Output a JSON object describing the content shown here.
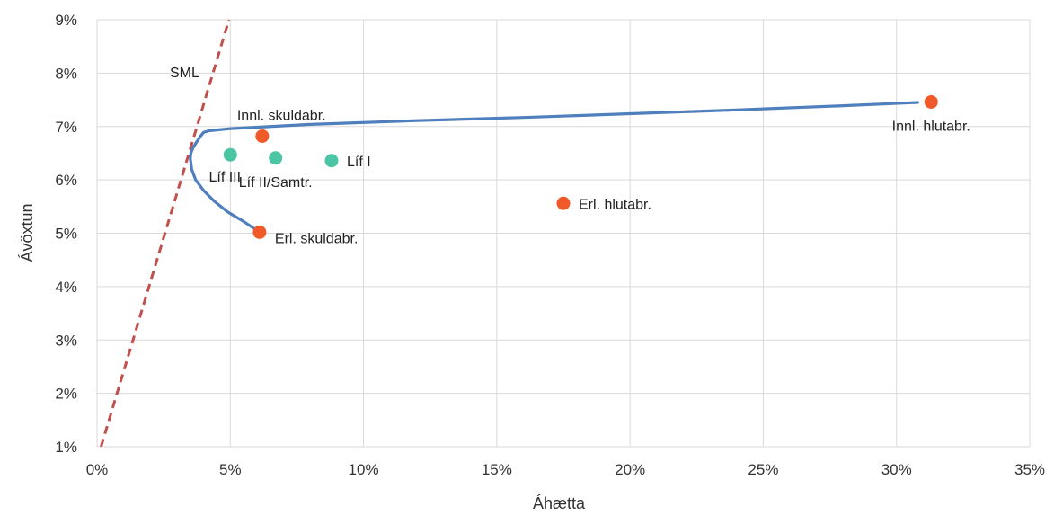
{
  "chart_data": {
    "type": "scatter",
    "title": "",
    "xlabel": "Áhætta",
    "ylabel": "Ávöxtun",
    "xlim": [
      0,
      0.35
    ],
    "ylim": [
      0.01,
      0.09
    ],
    "grid": true,
    "x_ticks": [
      {
        "value": 0,
        "label": "0%"
      },
      {
        "value": 0.05,
        "label": "5%"
      },
      {
        "value": 0.1,
        "label": "10%"
      },
      {
        "value": 0.15,
        "label": "15%"
      },
      {
        "value": 0.2,
        "label": "20%"
      },
      {
        "value": 0.25,
        "label": "25%"
      },
      {
        "value": 0.3,
        "label": "30%"
      },
      {
        "value": 0.35,
        "label": "35%"
      }
    ],
    "y_ticks": [
      {
        "value": 0.01,
        "label": "1%"
      },
      {
        "value": 0.02,
        "label": "2%"
      },
      {
        "value": 0.03,
        "label": "3%"
      },
      {
        "value": 0.04,
        "label": "4%"
      },
      {
        "value": 0.05,
        "label": "5%"
      },
      {
        "value": 0.06,
        "label": "6%"
      },
      {
        "value": 0.07,
        "label": "7%"
      },
      {
        "value": 0.08,
        "label": "8%"
      },
      {
        "value": 0.09,
        "label": "9%"
      }
    ],
    "colors": {
      "asset": "#f05a28",
      "fund": "#4cc5a5",
      "frontier": "#4f7fbd",
      "sml": "#c0504d",
      "grid": "#d9d9d9"
    },
    "points": [
      {
        "label": "Innl. skuldabr.",
        "x": 0.062,
        "y": 0.0682,
        "group": "asset",
        "label_pos": "above-left"
      },
      {
        "label": "Erl. skuldabr.",
        "x": 0.061,
        "y": 0.0502,
        "group": "asset",
        "label_pos": "right-below"
      },
      {
        "label": "Erl. hlutabr.",
        "x": 0.175,
        "y": 0.0556,
        "group": "asset",
        "label_pos": "right"
      },
      {
        "label": "Innl. hlutabr.",
        "x": 0.313,
        "y": 0.0746,
        "group": "asset",
        "label_pos": "below"
      },
      {
        "label": "Líf III",
        "x": 0.05,
        "y": 0.0647,
        "group": "fund",
        "label_pos": "below-left"
      },
      {
        "label": "Líf II/Samtr.",
        "x": 0.067,
        "y": 0.0641,
        "group": "fund",
        "label_pos": "below"
      },
      {
        "label": "Líf I",
        "x": 0.088,
        "y": 0.0636,
        "group": "fund",
        "label_pos": "right"
      }
    ],
    "frontier": {
      "x": [
        0.061,
        0.055,
        0.049,
        0.044,
        0.04,
        0.037,
        0.0355,
        0.035,
        0.0352,
        0.036,
        0.0375,
        0.039,
        0.04,
        0.042,
        0.05,
        0.08,
        0.12,
        0.16,
        0.2,
        0.24,
        0.28,
        0.308
      ],
      "y": [
        0.0502,
        0.0522,
        0.054,
        0.056,
        0.058,
        0.06,
        0.062,
        0.064,
        0.065,
        0.066,
        0.0672,
        0.0683,
        0.0689,
        0.0692,
        0.0696,
        0.0704,
        0.0711,
        0.0717,
        0.0724,
        0.0731,
        0.0739,
        0.0745
      ]
    },
    "sml": {
      "label": "SML",
      "x": [
        0.0015,
        0.0495
      ],
      "y": [
        0.01,
        0.09
      ]
    }
  }
}
